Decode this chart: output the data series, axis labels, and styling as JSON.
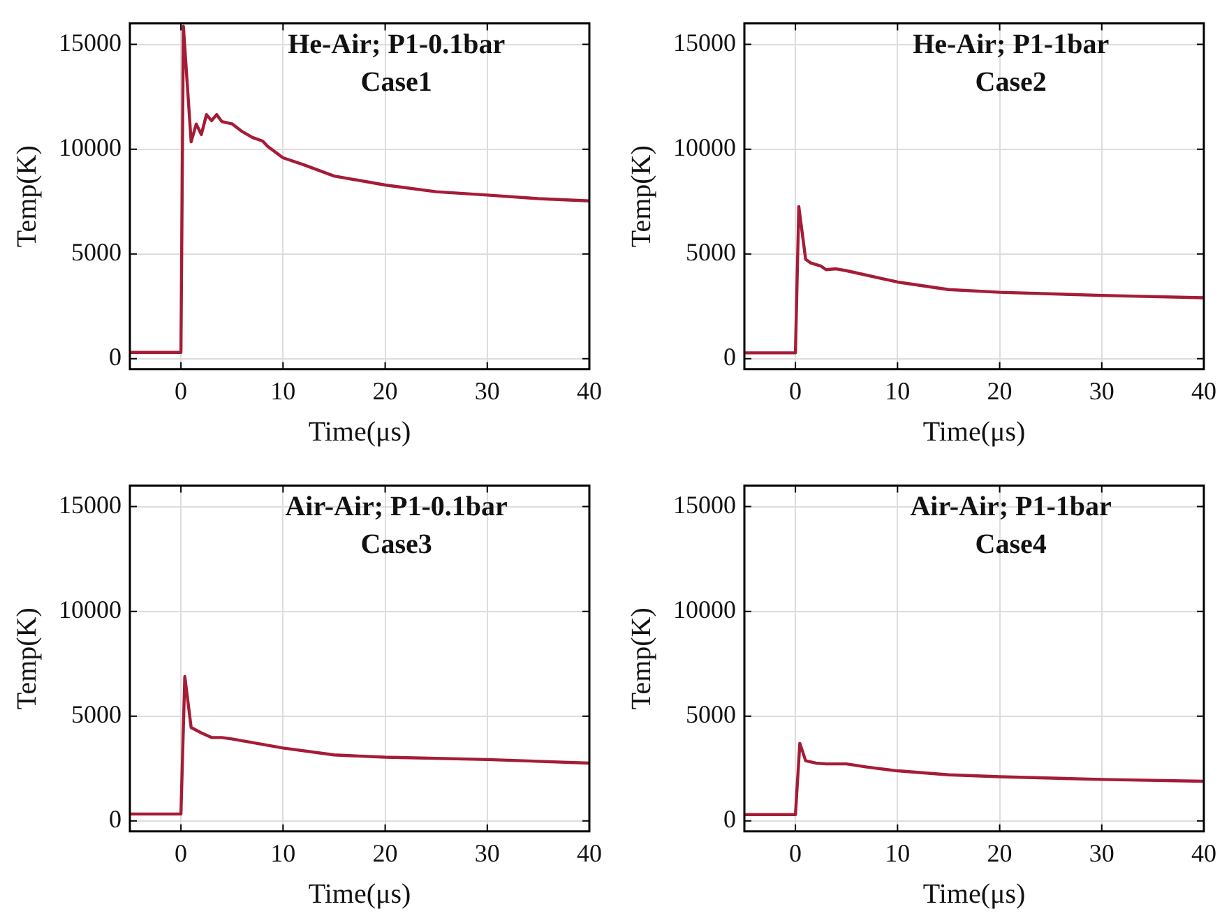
{
  "chart_data": [
    {
      "type": "line",
      "xlabel": "Time(μs)",
      "ylabel": "Temp(K)",
      "annotations": [
        "He-Air; P1-0.1bar",
        "Case1"
      ],
      "xlim": [
        -5,
        40
      ],
      "xticks": [
        0,
        10,
        20,
        30,
        40
      ],
      "ylim": [
        -500,
        16000
      ],
      "yticks": [
        0,
        5000,
        10000,
        15000
      ],
      "grid": true,
      "marker": "none",
      "series": [
        {
          "color": "#a51c36",
          "x": [
            -5,
            0,
            0.24,
            1,
            1.5,
            2,
            2.5,
            3,
            3.5,
            4,
            5,
            6,
            7,
            8,
            8.5,
            10,
            12,
            15,
            20,
            25,
            30,
            35,
            40
          ],
          "values": [
            300,
            300,
            15860,
            10350,
            11200,
            10700,
            11650,
            11360,
            11650,
            11320,
            11210,
            10840,
            10560,
            10390,
            10130,
            9590,
            9260,
            8720,
            8290,
            7970,
            7810,
            7640,
            7530
          ]
        }
      ]
    },
    {
      "type": "line",
      "xlabel": "Time(μs)",
      "ylabel": "Temp(K)",
      "annotations": [
        "He-Air; P1-1bar",
        "Case2"
      ],
      "xlim": [
        -5,
        40
      ],
      "xticks": [
        0,
        10,
        20,
        30,
        40
      ],
      "ylim": [
        -500,
        16000
      ],
      "yticks": [
        0,
        5000,
        10000,
        15000
      ],
      "grid": true,
      "marker": "none",
      "series": [
        {
          "color": "#a51c36",
          "x": [
            -5,
            0,
            0.33,
            1,
            1.5,
            2.5,
            3,
            4,
            5,
            10,
            15,
            20,
            30,
            40
          ],
          "values": [
            280,
            280,
            7260,
            4740,
            4570,
            4420,
            4250,
            4290,
            4200,
            3660,
            3300,
            3170,
            3020,
            2910
          ]
        }
      ]
    },
    {
      "type": "line",
      "xlabel": "Time(μs)",
      "ylabel": "Temp(K)",
      "annotations": [
        "Air-Air; P1-0.1bar",
        "Case3"
      ],
      "xlim": [
        -5,
        40
      ],
      "xticks": [
        0,
        10,
        20,
        30,
        40
      ],
      "ylim": [
        -500,
        16000
      ],
      "yticks": [
        0,
        5000,
        10000,
        15000
      ],
      "grid": true,
      "marker": "none",
      "series": [
        {
          "color": "#a51c36",
          "x": [
            -5,
            0,
            0.38,
            1,
            2,
            3,
            4,
            5,
            10,
            15,
            20,
            30,
            40
          ],
          "values": [
            330,
            330,
            6890,
            4460,
            4200,
            3980,
            3980,
            3910,
            3480,
            3150,
            3040,
            2930,
            2760
          ]
        }
      ]
    },
    {
      "type": "line",
      "xlabel": "Time(μs)",
      "ylabel": "Temp(K)",
      "annotations": [
        "Air-Air; P1-1bar",
        "Case4"
      ],
      "xlim": [
        -5,
        40
      ],
      "xticks": [
        0,
        10,
        20,
        30,
        40
      ],
      "ylim": [
        -500,
        16000
      ],
      "yticks": [
        0,
        5000,
        10000,
        15000
      ],
      "grid": true,
      "marker": "none",
      "series": [
        {
          "color": "#a51c36",
          "x": [
            -5,
            0,
            0.43,
            1,
            2,
            3,
            5,
            7,
            10,
            15,
            20,
            30,
            40
          ],
          "values": [
            300,
            300,
            3700,
            2870,
            2760,
            2720,
            2720,
            2570,
            2390,
            2200,
            2110,
            1980,
            1890
          ]
        }
      ]
    }
  ]
}
